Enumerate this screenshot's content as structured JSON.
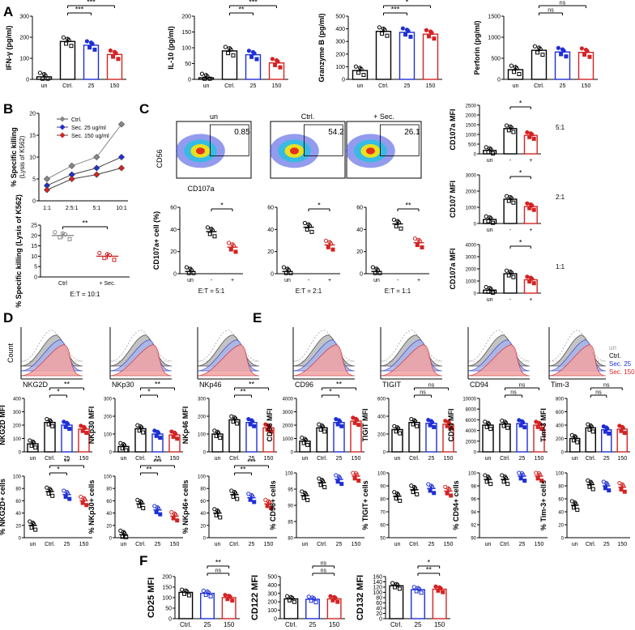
{
  "colors": {
    "black": "#000000",
    "blue": "#1f2fd6",
    "red": "#d42323",
    "grey": "#888888",
    "flow_red": "#f2a3a3",
    "flow_blue": "#a9b4ec",
    "flow_grey": "#b9b9b9"
  },
  "panels": {
    "A": {
      "letter": "A"
    },
    "B": {
      "letter": "B"
    },
    "C": {
      "letter": "C"
    },
    "D": {
      "letter": "D"
    },
    "E": {
      "letter": "E"
    },
    "F": {
      "letter": "F"
    }
  },
  "flow": {
    "titles": [
      "un",
      "Ctrl.",
      "+ Sec."
    ],
    "gates": [
      "0.85",
      "54.2",
      "26.1"
    ],
    "ylabel": "CD56",
    "xlabel": "CD107a"
  },
  "hist_d": {
    "labels": [
      "NKG2D",
      "NKp30",
      "NKp46"
    ],
    "ylabel": "Count"
  },
  "hist_e": {
    "labels": [
      "CD96",
      "TIGIT",
      "CD94",
      "Tim-3"
    ],
    "legend": [
      "un",
      "Ctrl.",
      "Sec. 25",
      "Sec. 150"
    ]
  },
  "line_b": {
    "ylabel": "% Specific killing",
    "ylabel2": "(Lysis of K562)",
    "ticks_x": [
      "1:1",
      "2.5:1",
      "5:1",
      "10:1"
    ],
    "legend": [
      "Ctrl.",
      "Sec. 25 ug/ml",
      "Sec. 150 ug/ml"
    ]
  },
  "chart_data": [
    {
      "type": "bar",
      "id": "ifn",
      "ylabel": "IFN-γ (pg/ml)",
      "categories": [
        "un",
        "Ctrl.",
        "25",
        "150"
      ],
      "values": [
        12,
        180,
        162,
        118
      ],
      "ylim": [
        0,
        300
      ],
      "yticks": [
        0,
        100,
        200,
        300
      ],
      "sig": [
        "***",
        "***"
      ]
    },
    {
      "type": "bar",
      "id": "il10",
      "ylabel": "IL-10 (pg/ml)",
      "categories": [
        "un",
        "Ctrl.",
        "25",
        "150"
      ],
      "values": [
        5,
        90,
        78,
        52
      ],
      "ylim": [
        0,
        200
      ],
      "yticks": [
        0,
        50,
        100,
        150,
        200
      ],
      "sig": [
        "**",
        "***"
      ]
    },
    {
      "type": "bar",
      "id": "gzb",
      "ylabel": "Granzyme B (pg/ml)",
      "categories": [
        "un",
        "Ctrl.",
        "25",
        "150"
      ],
      "values": [
        70,
        380,
        372,
        358
      ],
      "ylim": [
        0,
        500
      ],
      "yticks": [
        0,
        100,
        200,
        300,
        400,
        500
      ],
      "sig": [
        "***",
        "*"
      ]
    },
    {
      "type": "bar",
      "id": "prf",
      "ylabel": "Perforin (pg/ml)",
      "categories": [
        "un",
        "Ctrl.",
        "25",
        "150"
      ],
      "values": [
        230,
        690,
        650,
        640
      ],
      "ylim": [
        0,
        1500
      ],
      "yticks": [
        0,
        500,
        1000,
        1500
      ],
      "sig": [
        "ns",
        "ns"
      ]
    },
    {
      "type": "line",
      "id": "killing",
      "ylabel": "% Specific killing (Lysis of K562)",
      "categories": [
        "1:1",
        "2.5:1",
        "5:1",
        "10:1"
      ],
      "series": [
        {
          "name": "Ctrl.",
          "values": [
            5,
            8,
            10,
            17.5
          ]
        },
        {
          "name": "Sec. 25 ug/ml",
          "values": [
            3.5,
            6,
            7.5,
            10
          ]
        },
        {
          "name": "Sec. 150 ug/ml",
          "values": [
            2.5,
            5,
            6,
            7.5
          ]
        }
      ],
      "ylim": [
        0,
        20
      ],
      "yticks": [
        0,
        5,
        10,
        15,
        20
      ]
    },
    {
      "type": "scatter",
      "id": "killing-et10",
      "ylabel": "% Specific killing (Lysis of K562)",
      "categories": [
        "Ctrl",
        "+ Sec."
      ],
      "values": [
        20,
        10
      ],
      "ylim": [
        0,
        25
      ],
      "yticks": [
        0,
        5,
        10,
        15,
        20,
        25
      ],
      "xlabel": "E:T = 10:1",
      "sig": "**"
    },
    {
      "type": "scatter",
      "id": "cd107a-51",
      "ylabel": "CD107a+ cell (%)",
      "categories": [
        "un",
        "-",
        "+"
      ],
      "values": [
        2,
        38,
        24
      ],
      "ylim": [
        0,
        60
      ],
      "yticks": [
        0,
        20,
        40,
        60
      ],
      "xlabel": "E:T = 5:1",
      "sig": "*"
    },
    {
      "type": "scatter",
      "id": "cd107a-21",
      "ylabel": "",
      "categories": [
        "un",
        "-",
        "+"
      ],
      "values": [
        2,
        42,
        26
      ],
      "ylim": [
        0,
        60
      ],
      "yticks": [
        0,
        20,
        40,
        60
      ],
      "xlabel": "E:T = 2:1",
      "sig": "*"
    },
    {
      "type": "scatter",
      "id": "cd107a-11",
      "ylabel": "",
      "categories": [
        "un",
        "-",
        "+"
      ],
      "values": [
        2,
        45,
        28
      ],
      "ylim": [
        0,
        60
      ],
      "yticks": [
        0,
        20,
        40,
        60
      ],
      "xlabel": "E:T = 1:1",
      "sig": "**"
    },
    {
      "type": "bar",
      "id": "mfi51",
      "ylabel": "CD107a MFI",
      "categories": [
        "un",
        "-",
        "+"
      ],
      "values": [
        180,
        1300,
        950
      ],
      "ylim": [
        0,
        2500
      ],
      "yticks": [
        0,
        500,
        1000,
        1500,
        2000,
        2500
      ],
      "sig": "*",
      "ratio": "5:1"
    },
    {
      "type": "bar",
      "id": "mfi21",
      "ylabel": "CD107 MFI",
      "categories": [
        "un",
        "-",
        "+"
      ],
      "values": [
        250,
        1500,
        1050
      ],
      "ylim": [
        0,
        3000
      ],
      "yticks": [
        0,
        1000,
        2000,
        3000
      ],
      "sig": "*",
      "ratio": "2:1"
    },
    {
      "type": "bar",
      "id": "mfi11",
      "ylabel": "CD107a MFI",
      "categories": [
        "un",
        "-",
        "+"
      ],
      "values": [
        250,
        1600,
        1100
      ],
      "ylim": [
        0,
        4000
      ],
      "yticks": [
        0,
        1000,
        2000,
        3000,
        4000
      ],
      "sig": "*",
      "ratio": "1:1"
    },
    {
      "type": "bar",
      "id": "nkg2d",
      "ylabel": "NKG2D MFI",
      "categories": [
        "un",
        "Ctrl.",
        "25",
        "150"
      ],
      "values": [
        60,
        220,
        200,
        170
      ],
      "ylim": [
        0,
        400
      ],
      "yticks": [
        0,
        100,
        200,
        300,
        400
      ],
      "sig": [
        "*",
        "**"
      ]
    },
    {
      "type": "bar",
      "id": "nkp30",
      "ylabel": "NKp30 MFI",
      "categories": [
        "un",
        "Ctrl.",
        "25",
        "150"
      ],
      "values": [
        30,
        130,
        100,
        95
      ],
      "ylim": [
        0,
        300
      ],
      "yticks": [
        0,
        100,
        200,
        300
      ],
      "sig": [
        "*",
        "**"
      ]
    },
    {
      "type": "bar",
      "id": "nkp46",
      "ylabel": "NKp46 MFI",
      "categories": [
        "un",
        "Ctrl.",
        "25",
        "150"
      ],
      "values": [
        100,
        180,
        165,
        135
      ],
      "ylim": [
        0,
        300
      ],
      "yticks": [
        0,
        100,
        200,
        300
      ],
      "sig": [
        "**",
        "**"
      ]
    },
    {
      "type": "scatter",
      "id": "pnkg2d",
      "ylabel": "% NKG2D+ cells",
      "categories": [
        "un",
        "Ctrl.",
        "25",
        "150"
      ],
      "values": [
        20,
        75,
        70,
        60
      ],
      "ylim": [
        0,
        100
      ],
      "yticks": [
        0,
        20,
        40,
        60,
        80,
        100
      ],
      "sig": [
        "*",
        "**"
      ]
    },
    {
      "type": "scatter",
      "id": "pnkp30",
      "ylabel": "% NKp30+ cells",
      "categories": [
        "un",
        "Ctrl.",
        "25",
        "150"
      ],
      "values": [
        5,
        55,
        45,
        35
      ],
      "ylim": [
        0,
        100
      ],
      "yticks": [
        0,
        20,
        40,
        60,
        80,
        100
      ],
      "sig": [
        "**",
        "***"
      ]
    },
    {
      "type": "scatter",
      "id": "pnkp46",
      "ylabel": "% NKp46+ cells",
      "categories": [
        "un",
        "Ctrl.",
        "25",
        "150"
      ],
      "values": [
        40,
        70,
        65,
        55
      ],
      "ylim": [
        0,
        100
      ],
      "yticks": [
        0,
        20,
        40,
        60,
        80,
        100
      ],
      "sig": [
        "**",
        "***"
      ]
    },
    {
      "type": "bar",
      "id": "cd96",
      "ylabel": "CD96 MFI",
      "categories": [
        "un",
        "Ctrl.",
        "25",
        "150"
      ],
      "values": [
        800,
        1800,
        2200,
        2300
      ],
      "ylim": [
        0,
        4000
      ],
      "yticks": [
        0,
        1000,
        2000,
        3000,
        4000
      ],
      "sig": [
        "*",
        "**"
      ]
    },
    {
      "type": "bar",
      "id": "tigit",
      "ylabel": "TIGIT MFI",
      "categories": [
        "un",
        "Ctrl.",
        "25",
        "150"
      ],
      "values": [
        250,
        330,
        320,
        310
      ],
      "ylim": [
        0,
        600
      ],
      "yticks": [
        0,
        200,
        400,
        600
      ],
      "sig": [
        "ns",
        "ns"
      ]
    },
    {
      "type": "bar",
      "id": "cd94",
      "ylabel": "CD94 MFI",
      "categories": [
        "un",
        "Ctrl.",
        "25",
        "150"
      ],
      "values": [
        5000,
        5200,
        5300,
        5000
      ],
      "ylim": [
        0,
        10000
      ],
      "yticks": [
        0,
        2000,
        4000,
        6000,
        8000,
        10000
      ],
      "sig": [
        "ns",
        "ns"
      ]
    },
    {
      "type": "bar",
      "id": "tim3",
      "ylabel": "Tim-3 MFI",
      "categories": [
        "un",
        "Ctrl.",
        "25",
        "150"
      ],
      "values": [
        200,
        360,
        330,
        340
      ],
      "ylim": [
        0,
        800
      ],
      "yticks": [
        0,
        200,
        400,
        600,
        800
      ],
      "sig": [
        "ns",
        "ns"
      ]
    },
    {
      "type": "scatter",
      "id": "pcd96",
      "ylabel": "% CD96+ cells",
      "categories": [
        "un",
        "Ctrl.",
        "25",
        "150"
      ],
      "values": [
        93,
        97,
        98,
        99
      ],
      "ylim": [
        80,
        100
      ],
      "yticks": [
        80,
        85,
        90,
        95,
        100
      ],
      "sig": []
    },
    {
      "type": "scatter",
      "id": "ptigit",
      "ylabel": "% TIGIT+ cells",
      "categories": [
        "un",
        "Ctrl.",
        "25",
        "150"
      ],
      "values": [
        82,
        87,
        88,
        86
      ],
      "ylim": [
        50,
        100
      ],
      "yticks": [
        50,
        60,
        70,
        80,
        90,
        100
      ],
      "sig": []
    },
    {
      "type": "scatter",
      "id": "pcd94",
      "ylabel": "% CD94+ cells",
      "categories": [
        "un",
        "Ctrl.",
        "25",
        "150"
      ],
      "values": [
        99,
        99,
        99.5,
        99.5
      ],
      "ylim": [
        90,
        100
      ],
      "yticks": [
        90,
        92,
        94,
        96,
        98,
        100
      ],
      "sig": []
    },
    {
      "type": "scatter",
      "id": "ptim3",
      "ylabel": "% Tim-3+ cells",
      "categories": [
        "un",
        "Ctrl.",
        "25",
        "150"
      ],
      "values": [
        50,
        82,
        80,
        78
      ],
      "ylim": [
        0,
        100
      ],
      "yticks": [
        0,
        20,
        40,
        60,
        80,
        100
      ],
      "sig": []
    },
    {
      "type": "bar",
      "id": "cd25",
      "ylabel": "CD25 MFI",
      "categories": [
        "Ctrl.",
        "25",
        "150"
      ],
      "values": [
        125,
        120,
        100
      ],
      "ylim": [
        0,
        200
      ],
      "yticks": [
        0,
        50,
        100,
        150,
        200
      ],
      "sig": [
        "ns",
        "**"
      ]
    },
    {
      "type": "bar",
      "id": "cd122",
      "ylabel": "CD122 MFI",
      "categories": [
        "Ctrl.",
        "25",
        "150"
      ],
      "values": [
        235,
        230,
        235
      ],
      "ylim": [
        0,
        500
      ],
      "yticks": [
        0,
        100,
        200,
        300,
        400,
        500
      ],
      "sig": [
        "ns",
        "ns"
      ]
    },
    {
      "type": "bar",
      "id": "cd132",
      "ylabel": "CD132 MFI",
      "categories": [
        "Ctrl.",
        "25",
        "150"
      ],
      "values": [
        125,
        110,
        112
      ],
      "ylim": [
        0,
        160
      ],
      "yticks": [
        0,
        20,
        40,
        60,
        80,
        100,
        120,
        140,
        160
      ],
      "sig": [
        "**",
        "*"
      ]
    }
  ]
}
